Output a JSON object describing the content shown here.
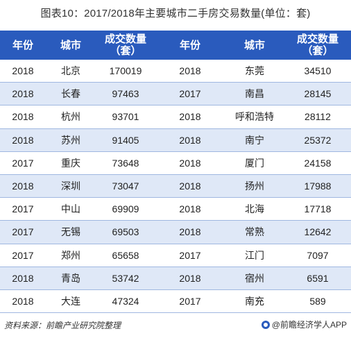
{
  "title": "图表10：2017/2018年主要城市二手房交易数量(单位：套)",
  "headers": {
    "year": "年份",
    "city": "城市",
    "qty_line1": "成交数量",
    "qty_line2": "（套）"
  },
  "rows": [
    {
      "y1": "2018",
      "c1": "北京",
      "q1": "170019",
      "y2": "2018",
      "c2": "东莞",
      "q2": "34510"
    },
    {
      "y1": "2018",
      "c1": "长春",
      "q1": "97463",
      "y2": "2017",
      "c2": "南昌",
      "q2": "28145"
    },
    {
      "y1": "2018",
      "c1": "杭州",
      "q1": "93701",
      "y2": "2018",
      "c2": "呼和浩特",
      "q2": "28112"
    },
    {
      "y1": "2018",
      "c1": "苏州",
      "q1": "91405",
      "y2": "2018",
      "c2": "南宁",
      "q2": "25372"
    },
    {
      "y1": "2017",
      "c1": "重庆",
      "q1": "73648",
      "y2": "2018",
      "c2": "厦门",
      "q2": "24158"
    },
    {
      "y1": "2018",
      "c1": "深圳",
      "q1": "73047",
      "y2": "2018",
      "c2": "扬州",
      "q2": "17988"
    },
    {
      "y1": "2017",
      "c1": "中山",
      "q1": "69909",
      "y2": "2018",
      "c2": "北海",
      "q2": "17718"
    },
    {
      "y1": "2017",
      "c1": "无锡",
      "q1": "69503",
      "y2": "2018",
      "c2": "常熟",
      "q2": "12642"
    },
    {
      "y1": "2017",
      "c1": "郑州",
      "q1": "65658",
      "y2": "2017",
      "c2": "江门",
      "q2": "7097"
    },
    {
      "y1": "2018",
      "c1": "青岛",
      "q1": "53742",
      "y2": "2018",
      "c2": "宿州",
      "q2": "6591"
    },
    {
      "y1": "2018",
      "c1": "大连",
      "q1": "47324",
      "y2": "2017",
      "c2": "南充",
      "q2": "589"
    }
  ],
  "footer": {
    "source": "资料来源：前瞻产业研究院整理",
    "brand": "@前瞻经济学人APP"
  }
}
